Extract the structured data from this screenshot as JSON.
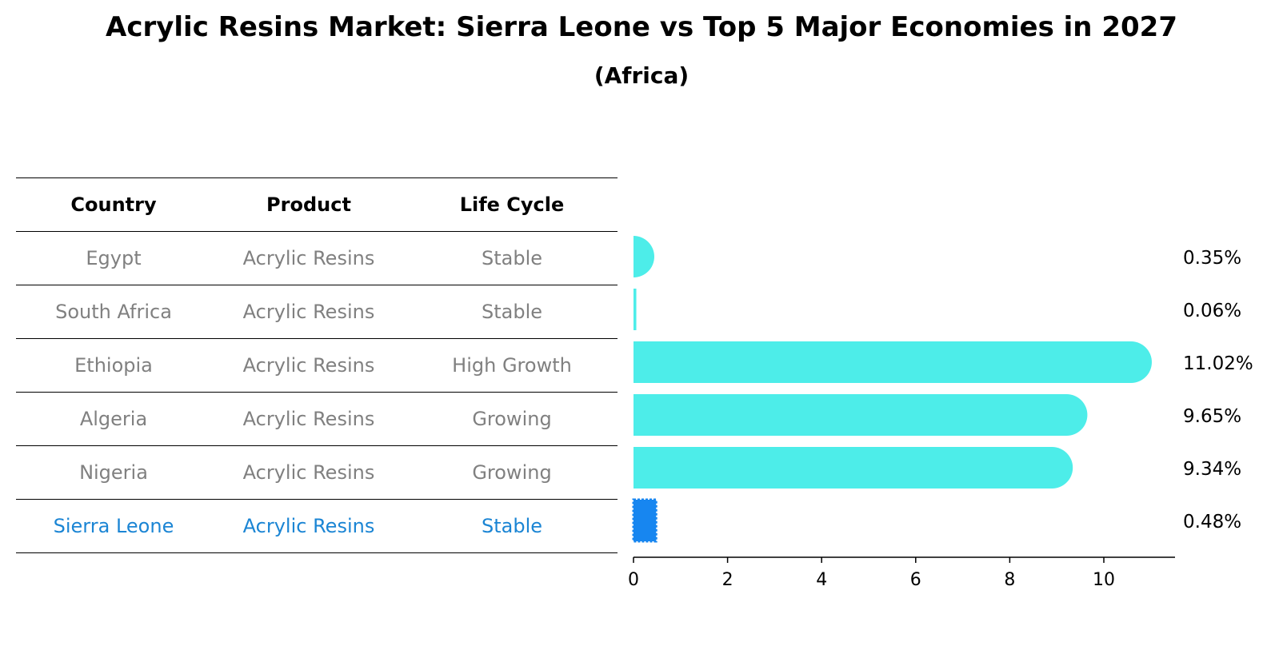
{
  "title": "Acrylic Resins Market: Sierra Leone vs Top 5 Major Economies in 2027",
  "subtitle": "(Africa)",
  "table": {
    "headers": [
      "Country",
      "Product",
      "Life Cycle"
    ],
    "rows": [
      {
        "country": "Egypt",
        "product": "Acrylic Resins",
        "life_cycle": "Stable"
      },
      {
        "country": "South Africa",
        "product": "Acrylic Resins",
        "life_cycle": "Stable"
      },
      {
        "country": "Ethiopia",
        "product": "Acrylic Resins",
        "life_cycle": "High Growth"
      },
      {
        "country": "Algeria",
        "product": "Acrylic Resins",
        "life_cycle": "Growing"
      },
      {
        "country": "Nigeria",
        "product": "Acrylic Resins",
        "life_cycle": "Growing"
      },
      {
        "country": "Sierra Leone",
        "product": "Acrylic Resins",
        "life_cycle": "Stable"
      }
    ]
  },
  "colors": {
    "bar": "#4dede9",
    "highlight_bar": "#1786f0",
    "highlight_text": "#1b85d4",
    "muted_text": "#808080"
  },
  "chart_data": {
    "type": "bar",
    "orientation": "horizontal",
    "categories": [
      "Egypt",
      "South Africa",
      "Ethiopia",
      "Algeria",
      "Nigeria",
      "Sierra Leone"
    ],
    "values": [
      0.35,
      0.06,
      11.02,
      9.65,
      9.34,
      0.48
    ],
    "value_labels": [
      "0.35%",
      "0.06%",
      "11.02%",
      "9.65%",
      "9.34%",
      "0.48%"
    ],
    "highlight_category": "Sierra Leone",
    "xlim": [
      0,
      11.5
    ],
    "xticks": [
      0,
      2,
      4,
      6,
      8,
      10
    ],
    "xlabel": "",
    "ylabel": "",
    "grid": false
  }
}
